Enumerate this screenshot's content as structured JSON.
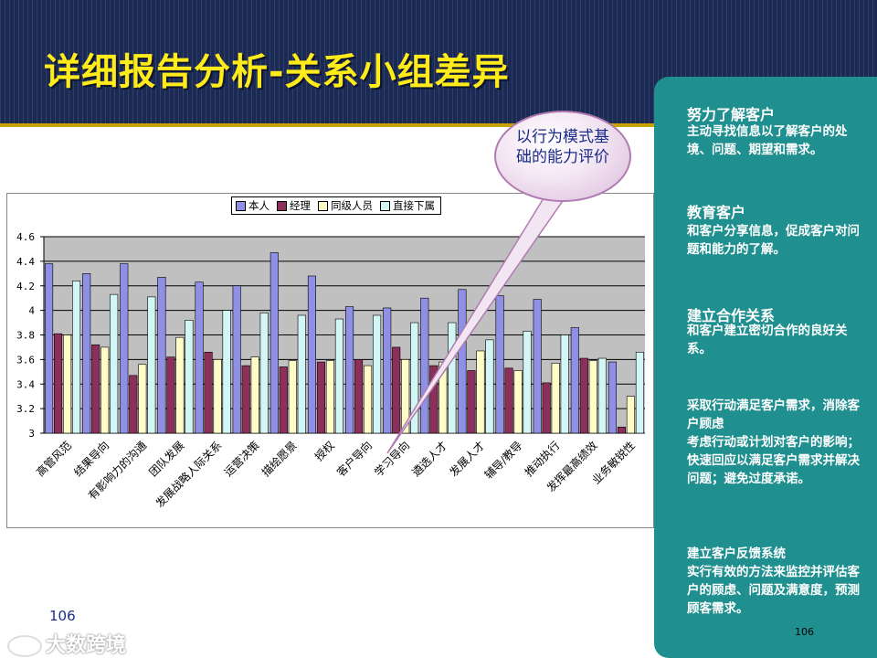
{
  "title": "详细报告分析-关系小组差异",
  "callout": {
    "text": "以行为模式基础的能力评价"
  },
  "panel": {
    "sections": [
      {
        "heading": "努力了解客户",
        "body": "主动寻找信息以了解客户的处境、问题、期望和需求。"
      },
      {
        "heading": "教育客户",
        "body": "和客户分享信息，促成客户对问题和能力的了解。"
      },
      {
        "heading": "建立合作关系",
        "body": "和客户建立密切合作的良好关系。"
      },
      {
        "heading": "",
        "body": "采取行动满足客户需求，消除客户顾虑\n考虑行动或计划对客户的影响；快速回应以满足客户需求并解决问题；避免过度承诺。"
      },
      {
        "heading": "",
        "body": "建立客户反馈系统\n实行有效的方法来监控并评估客户的顾虑、问题及满意度，预测顾客需求。"
      }
    ]
  },
  "page_numbers": {
    "left": "106",
    "right": "106"
  },
  "watermark": "大数跨境",
  "colors": {
    "self": "#8f8fe6",
    "manager": "#8c2f5a",
    "peer": "#fffcc8",
    "subordinate": "#d2f6f6",
    "plot_bg": "#c0c0c0",
    "panel": "#1f8f8f",
    "title": "#ffeb1a"
  },
  "chart_data": {
    "type": "bar",
    "ylim": [
      3,
      4.6
    ],
    "yticks": [
      "3",
      "3.2",
      "3.4",
      "3.6",
      "3.8",
      "4",
      "4.2",
      "4.4",
      "4.6"
    ],
    "legend_position": "top",
    "grid": true,
    "categories": [
      "高管风范",
      "结果导向",
      "有影响力的沟通",
      "团队发展",
      "发展战略人际关系",
      "运营决策",
      "描绘愿景",
      "授权",
      "客户导向",
      "学习导向",
      "遴选人才",
      "发展人才",
      "辅导/教导",
      "推动执行",
      "发挥最高绩效",
      "业务敏锐性"
    ],
    "series": [
      {
        "name": "本人",
        "values": [
          4.38,
          4.3,
          4.38,
          4.27,
          4.23,
          4.2,
          4.47,
          4.28,
          4.03,
          4.02,
          4.1,
          4.17,
          4.12,
          4.09,
          3.86,
          3.58
        ]
      },
      {
        "name": "经理",
        "values": [
          3.81,
          3.72,
          3.47,
          3.62,
          3.66,
          3.55,
          3.54,
          3.58,
          3.6,
          3.7,
          3.55,
          3.51,
          3.53,
          3.41,
          3.61,
          3.05
        ]
      },
      {
        "name": "同级人员",
        "values": [
          3.8,
          3.7,
          3.56,
          3.78,
          3.6,
          3.62,
          3.59,
          3.59,
          3.55,
          3.6,
          3.58,
          3.67,
          3.51,
          3.57,
          3.59,
          3.3
        ]
      },
      {
        "name": "直接下属",
        "values": [
          4.24,
          4.13,
          4.11,
          3.92,
          4.0,
          3.98,
          3.96,
          3.93,
          3.96,
          3.9,
          3.9,
          3.76,
          3.83,
          3.8,
          3.61,
          3.66
        ]
      }
    ]
  }
}
